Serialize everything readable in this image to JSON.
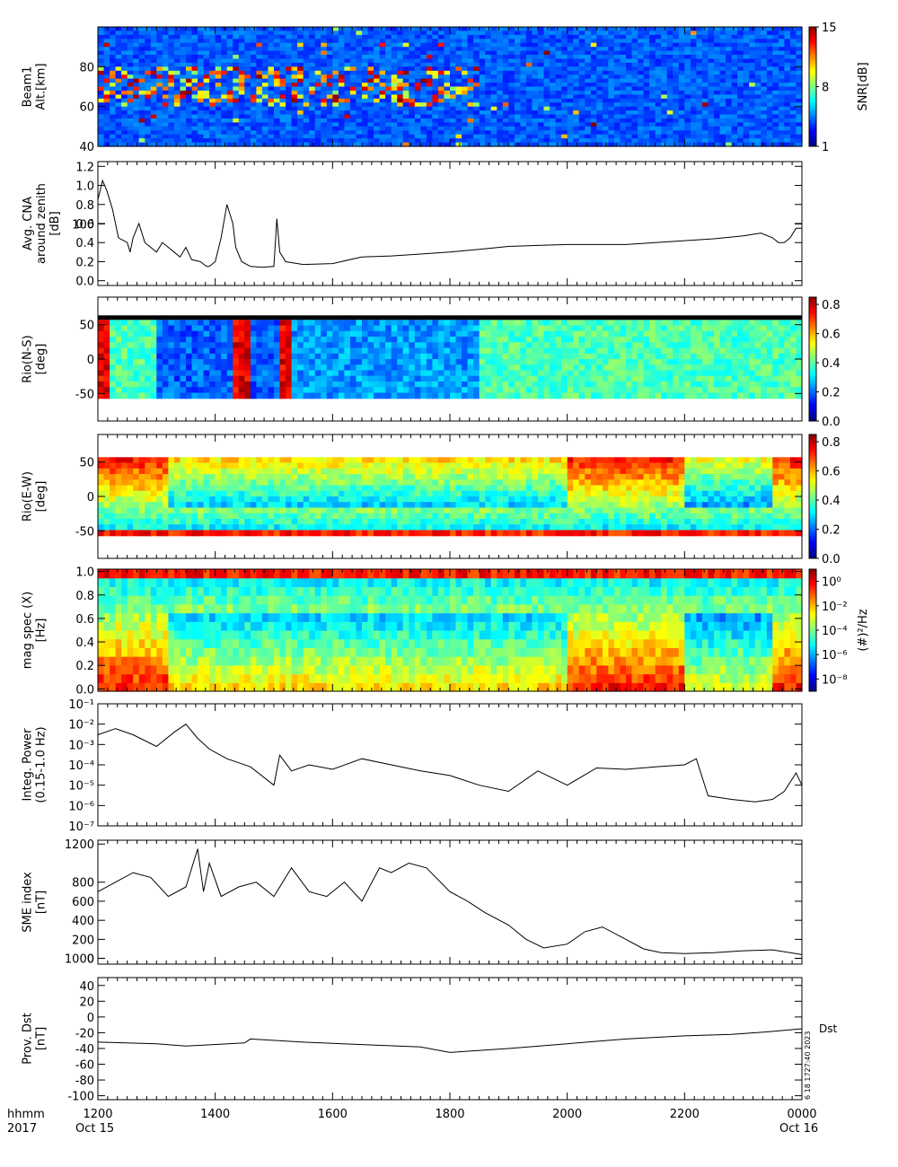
{
  "time_axis": {
    "row1_label": "hhmm",
    "row2_label": "2017",
    "ticks": [
      "1200",
      "1400",
      "1600",
      "1800",
      "2000",
      "2200",
      "0000"
    ],
    "start_date": "Oct 15",
    "end_date": "Oct 16"
  },
  "stamp": "6 18 1727:40 2023",
  "chart_data": [
    {
      "type": "heatmap",
      "ylabel_lines": [
        "Beam1",
        "Alt.[km]"
      ],
      "yticks": [
        "40",
        "60",
        "80",
        "100"
      ],
      "colorbar": {
        "label": "SNR[dB]",
        "ticks": [
          "1",
          "8",
          "15"
        ],
        "range": [
          1,
          15
        ]
      },
      "xlim": [
        "1200",
        "0000"
      ],
      "ylim": [
        40,
        100
      ]
    },
    {
      "type": "line",
      "ylabel_lines": [
        "Avg. CNA",
        "around zenith",
        "[dB]"
      ],
      "yticks": [
        "0.0",
        "0.2",
        "0.4",
        "0.6",
        "0.8",
        "1.0",
        "1.2"
      ],
      "ylim": [
        -0.05,
        1.25
      ],
      "x_hours": [
        0,
        0.08,
        0.15,
        0.25,
        0.35,
        0.5,
        0.55,
        0.6,
        0.7,
        0.8,
        1.0,
        1.1,
        1.2,
        1.3,
        1.4,
        1.5,
        1.6,
        1.75,
        1.85,
        1.9,
        2.0,
        2.1,
        2.2,
        2.3,
        2.35,
        2.45,
        2.6,
        2.8,
        3.0,
        3.05,
        3.1,
        3.2,
        3.5,
        4.0,
        4.5,
        5.0,
        5.5,
        6.0,
        6.5,
        7.0,
        7.5,
        8.0,
        8.5,
        9.0,
        9.5,
        10.0,
        10.5,
        11.0,
        11.3,
        11.5,
        11.6,
        11.7,
        11.8,
        11.9,
        12.0
      ],
      "values": [
        0.85,
        1.05,
        0.95,
        0.75,
        0.45,
        0.4,
        0.3,
        0.45,
        0.6,
        0.4,
        0.3,
        0.4,
        0.35,
        0.3,
        0.25,
        0.35,
        0.22,
        0.2,
        0.15,
        0.15,
        0.2,
        0.45,
        0.8,
        0.6,
        0.35,
        0.2,
        0.15,
        0.14,
        0.15,
        0.65,
        0.3,
        0.2,
        0.17,
        0.18,
        0.25,
        0.26,
        0.28,
        0.3,
        0.33,
        0.36,
        0.37,
        0.38,
        0.38,
        0.38,
        0.4,
        0.42,
        0.44,
        0.47,
        0.5,
        0.45,
        0.4,
        0.4,
        0.45,
        0.55,
        0.55
      ]
    },
    {
      "type": "heatmap",
      "ylabel_lines": [
        "Rio(N-S)",
        "[deg]"
      ],
      "yticks": [
        "-50",
        "0",
        "50"
      ],
      "colorbar": {
        "label": "",
        "ticks": [
          "0.0",
          "0.2",
          "0.4",
          "0.6",
          "0.8"
        ],
        "range": [
          0,
          0.85
        ]
      },
      "ylim": [
        -90,
        90
      ]
    },
    {
      "type": "heatmap",
      "ylabel_lines": [
        "Rio(E-W)",
        "[deg]"
      ],
      "yticks": [
        "-50",
        "0",
        "50"
      ],
      "colorbar": {
        "label": "",
        "ticks": [
          "0.0",
          "0.2",
          "0.4",
          "0.6",
          "0.8"
        ],
        "range": [
          0,
          0.85
        ]
      },
      "ylim": [
        -90,
        90
      ]
    },
    {
      "type": "heatmap",
      "ylabel_lines": [
        "mag spec (X)",
        "[Hz]"
      ],
      "yticks": [
        "0.0",
        "0.2",
        "0.4",
        "0.6",
        "0.8",
        "1.0"
      ],
      "colorbar": {
        "label": "(#)²/Hz",
        "ticks": [
          "10⁰",
          "10⁻²",
          "10⁻⁴",
          "10⁻⁶",
          "10⁻⁸"
        ],
        "range": [
          -9,
          1
        ],
        "log": true
      },
      "ylim": [
        -0.02,
        1.02
      ]
    },
    {
      "type": "line",
      "ylabel_lines": [
        "Integ. Power",
        "(0.15-1.0 Hz)"
      ],
      "yticks": [
        "10⁻⁷",
        "10⁻⁶",
        "10⁻⁵",
        "10⁻⁴",
        "10⁻³",
        "10⁻²",
        "10⁻¹"
      ],
      "yscale": "log",
      "ylim": [
        1e-07,
        0.1
      ],
      "x_hours": [
        0,
        0.3,
        0.6,
        1.0,
        1.3,
        1.5,
        1.7,
        1.9,
        2.2,
        2.6,
        3.0,
        3.1,
        3.3,
        3.6,
        4.0,
        4.5,
        5.0,
        5.5,
        6.0,
        6.5,
        7.0,
        7.5,
        8.0,
        8.5,
        9.0,
        9.5,
        10.0,
        10.2,
        10.4,
        10.8,
        11.2,
        11.5,
        11.7,
        11.9,
        12.0
      ],
      "values": [
        0.003,
        0.006,
        0.003,
        0.0008,
        0.004,
        0.01,
        0.002,
        0.0006,
        0.0002,
        8e-05,
        1e-05,
        0.0003,
        5e-05,
        0.0001,
        6e-05,
        0.0002,
        0.0001,
        5e-05,
        3e-05,
        1e-05,
        5e-06,
        5e-05,
        1e-05,
        7e-05,
        6e-05,
        8e-05,
        0.0001,
        0.0002,
        3e-06,
        2e-06,
        1.5e-06,
        2e-06,
        5e-06,
        4e-05,
        1e-05
      ]
    },
    {
      "type": "line",
      "ylabel_lines": [
        "SME index",
        "[nT]"
      ],
      "yticks": [
        "0",
        "200",
        "400",
        "600",
        "800",
        "1000",
        "1200"
      ],
      "ylim": [
        -60,
        1240
      ],
      "x_hours": [
        0,
        0.3,
        0.6,
        0.9,
        1.2,
        1.5,
        1.7,
        1.8,
        1.9,
        2.1,
        2.4,
        2.7,
        3.0,
        3.3,
        3.6,
        3.9,
        4.2,
        4.5,
        4.8,
        5.0,
        5.3,
        5.6,
        6.0,
        6.3,
        6.6,
        7.0,
        7.3,
        7.6,
        8.0,
        8.3,
        8.6,
        9.0,
        9.3,
        9.6,
        10.0,
        10.5,
        11.0,
        11.5,
        12.0
      ],
      "values": [
        700,
        800,
        900,
        850,
        650,
        750,
        1150,
        700,
        1000,
        650,
        750,
        800,
        650,
        950,
        700,
        650,
        800,
        600,
        950,
        900,
        1000,
        950,
        700,
        600,
        480,
        350,
        200,
        110,
        150,
        280,
        330,
        200,
        100,
        60,
        50,
        60,
        80,
        90,
        40
      ]
    },
    {
      "type": "line",
      "ylabel_lines": [
        "Prov. Dst",
        "[nT]"
      ],
      "yticks": [
        "-100",
        "-80",
        "-60",
        "-40",
        "-20",
        "0",
        "20",
        "40"
      ],
      "ylim": [
        -105,
        50
      ],
      "series": [
        {
          "name": "Dst",
          "values": [
            -32,
            -34,
            -37,
            -33,
            -28,
            -32,
            -35,
            -38,
            -45,
            -40,
            -34,
            -28,
            -24,
            -22,
            -19,
            -15
          ]
        }
      ],
      "x_hours": [
        0,
        1,
        1.5,
        2.5,
        2.6,
        3.5,
        4.5,
        5.5,
        6.0,
        7.0,
        8.0,
        9.0,
        10.0,
        10.8,
        11.4,
        12.0
      ]
    }
  ]
}
